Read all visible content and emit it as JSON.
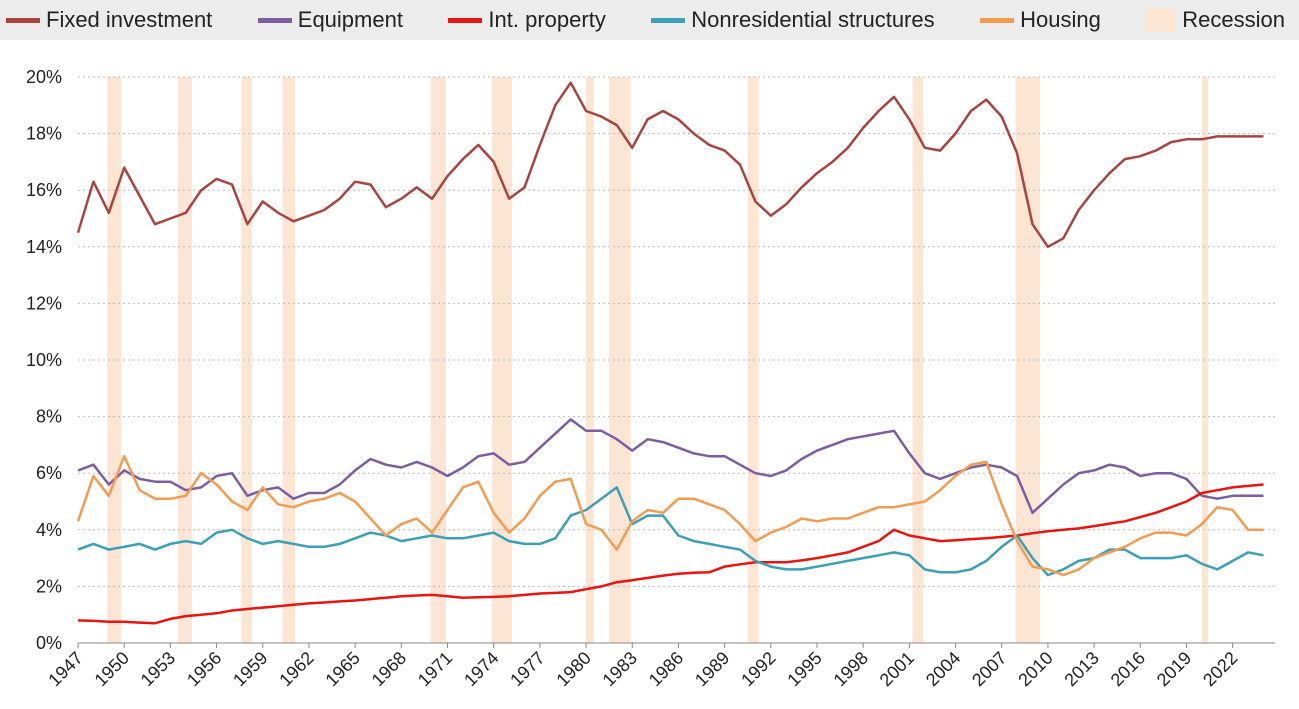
{
  "chart_data": {
    "type": "line",
    "x": [
      1947,
      1948,
      1949,
      1950,
      1951,
      1952,
      1953,
      1954,
      1955,
      1956,
      1957,
      1958,
      1959,
      1960,
      1961,
      1962,
      1963,
      1964,
      1965,
      1966,
      1967,
      1968,
      1969,
      1970,
      1971,
      1972,
      1973,
      1974,
      1975,
      1976,
      1977,
      1978,
      1979,
      1980,
      1981,
      1982,
      1983,
      1984,
      1985,
      1986,
      1987,
      1988,
      1989,
      1990,
      1991,
      1992,
      1993,
      1994,
      1995,
      1996,
      1997,
      1998,
      1999,
      2000,
      2001,
      2002,
      2003,
      2004,
      2005,
      2006,
      2007,
      2008,
      2009,
      2010,
      2011,
      2012,
      2013,
      2014,
      2015,
      2016,
      2017,
      2018,
      2019,
      2020,
      2021,
      2022,
      2023,
      2024
    ],
    "series": [
      {
        "name": "Fixed investment",
        "color": "#a84440",
        "values": [
          14.5,
          16.3,
          15.2,
          16.8,
          15.8,
          14.8,
          15.0,
          15.2,
          16.0,
          16.4,
          16.2,
          14.8,
          15.6,
          15.2,
          14.9,
          15.1,
          15.3,
          15.7,
          16.3,
          16.2,
          15.4,
          15.7,
          16.1,
          15.7,
          16.5,
          17.1,
          17.6,
          17.0,
          15.7,
          16.1,
          17.6,
          19.0,
          19.8,
          18.8,
          18.6,
          18.3,
          17.5,
          18.5,
          18.8,
          18.5,
          18.0,
          17.6,
          17.4,
          16.9,
          15.6,
          15.1,
          15.5,
          16.1,
          16.6,
          17.0,
          17.5,
          18.2,
          18.8,
          19.3,
          18.5,
          17.5,
          17.4,
          18.0,
          18.8,
          19.2,
          18.6,
          17.3,
          14.8,
          14.0,
          14.3,
          15.3,
          16.0,
          16.6,
          17.1,
          17.2,
          17.4,
          17.7,
          17.8,
          17.8,
          17.9,
          17.9,
          17.9,
          17.9
        ]
      },
      {
        "name": "Equipment",
        "color": "#7a5ea0",
        "values": [
          6.1,
          6.3,
          5.6,
          6.1,
          5.8,
          5.7,
          5.7,
          5.4,
          5.5,
          5.9,
          6.0,
          5.2,
          5.4,
          5.5,
          5.1,
          5.3,
          5.3,
          5.6,
          6.1,
          6.5,
          6.3,
          6.2,
          6.4,
          6.2,
          5.9,
          6.2,
          6.6,
          6.7,
          6.3,
          6.4,
          6.9,
          7.4,
          7.9,
          7.5,
          7.5,
          7.2,
          6.8,
          7.2,
          7.1,
          6.9,
          6.7,
          6.6,
          6.6,
          6.3,
          6.0,
          5.9,
          6.1,
          6.5,
          6.8,
          7.0,
          7.2,
          7.3,
          7.4,
          7.5,
          6.7,
          6.0,
          5.8,
          6.0,
          6.2,
          6.3,
          6.2,
          5.9,
          4.6,
          5.1,
          5.6,
          6.0,
          6.1,
          6.3,
          6.2,
          5.9,
          6.0,
          6.0,
          5.8,
          5.2,
          5.1,
          5.2,
          5.2,
          5.2
        ]
      },
      {
        "name": "Int. property",
        "color": "#e8140f",
        "values": [
          0.8,
          0.78,
          0.75,
          0.75,
          0.72,
          0.7,
          0.85,
          0.95,
          1.0,
          1.05,
          1.15,
          1.2,
          1.25,
          1.3,
          1.35,
          1.4,
          1.43,
          1.47,
          1.5,
          1.55,
          1.6,
          1.65,
          1.68,
          1.7,
          1.65,
          1.6,
          1.62,
          1.63,
          1.65,
          1.7,
          1.75,
          1.77,
          1.8,
          1.9,
          2.0,
          2.15,
          2.22,
          2.3,
          2.38,
          2.45,
          2.48,
          2.5,
          2.7,
          2.78,
          2.85,
          2.85,
          2.85,
          2.92,
          3.0,
          3.1,
          3.2,
          3.4,
          3.6,
          4.0,
          3.8,
          3.7,
          3.6,
          3.63,
          3.67,
          3.7,
          3.75,
          3.8,
          3.88,
          3.95,
          4.0,
          4.05,
          4.13,
          4.22,
          4.3,
          4.45,
          4.6,
          4.8,
          5.0,
          5.3,
          5.4,
          5.5,
          5.55,
          5.6
        ]
      },
      {
        "name": "Nonresidential structures",
        "color": "#3c9fb8",
        "values": [
          3.3,
          3.5,
          3.3,
          3.4,
          3.5,
          3.3,
          3.5,
          3.6,
          3.5,
          3.9,
          4.0,
          3.7,
          3.5,
          3.6,
          3.5,
          3.4,
          3.4,
          3.5,
          3.7,
          3.9,
          3.8,
          3.6,
          3.7,
          3.8,
          3.7,
          3.7,
          3.8,
          3.9,
          3.6,
          3.5,
          3.5,
          3.7,
          4.5,
          4.7,
          5.1,
          5.5,
          4.2,
          4.5,
          4.5,
          3.8,
          3.6,
          3.5,
          3.4,
          3.3,
          2.9,
          2.7,
          2.6,
          2.6,
          2.7,
          2.8,
          2.9,
          3.0,
          3.1,
          3.2,
          3.1,
          2.6,
          2.5,
          2.5,
          2.6,
          2.9,
          3.4,
          3.8,
          3.0,
          2.4,
          2.6,
          2.9,
          3.0,
          3.3,
          3.3,
          3.0,
          3.0,
          3.0,
          3.1,
          2.8,
          2.6,
          2.9,
          3.2,
          3.1
        ]
      },
      {
        "name": "Housing",
        "color": "#f39b50",
        "values": [
          4.3,
          5.9,
          5.2,
          6.6,
          5.4,
          5.1,
          5.1,
          5.2,
          6.0,
          5.6,
          5.0,
          4.7,
          5.5,
          4.9,
          4.8,
          5.0,
          5.1,
          5.3,
          5.0,
          4.4,
          3.8,
          4.2,
          4.4,
          3.9,
          4.7,
          5.5,
          5.7,
          4.6,
          3.9,
          4.4,
          5.2,
          5.7,
          5.8,
          4.2,
          4.0,
          3.3,
          4.3,
          4.7,
          4.6,
          5.1,
          5.1,
          4.9,
          4.7,
          4.2,
          3.6,
          3.9,
          4.1,
          4.4,
          4.3,
          4.4,
          4.4,
          4.6,
          4.8,
          4.8,
          4.9,
          5.0,
          5.4,
          5.9,
          6.3,
          6.4,
          4.9,
          3.6,
          2.7,
          2.6,
          2.4,
          2.6,
          3.0,
          3.2,
          3.4,
          3.7,
          3.9,
          3.9,
          3.8,
          4.2,
          4.8,
          4.7,
          4.0,
          4.0
        ]
      }
    ],
    "recessions": {
      "name": "Recession",
      "color": "#fde5d4",
      "periods": [
        [
          1948.9,
          1949.8
        ],
        [
          1953.5,
          1954.4
        ],
        [
          1957.6,
          1958.3
        ],
        [
          1960.3,
          1961.1
        ],
        [
          1969.9,
          1970.9
        ],
        [
          1973.9,
          1975.2
        ],
        [
          1980.0,
          1980.5
        ],
        [
          1981.5,
          1982.9
        ],
        [
          1990.5,
          1991.2
        ],
        [
          2001.2,
          2001.9
        ],
        [
          2007.9,
          2009.5
        ],
        [
          2020.0,
          2020.4
        ]
      ]
    },
    "xlim": [
      1947,
      2024.75
    ],
    "xticks": [
      1947,
      1950,
      1953,
      1956,
      1959,
      1962,
      1965,
      1968,
      1971,
      1974,
      1977,
      1980,
      1983,
      1986,
      1989,
      1992,
      1995,
      1998,
      2001,
      2004,
      2007,
      2010,
      2013,
      2016,
      2019,
      2022
    ],
    "ylim": [
      0,
      20
    ],
    "yticks": [
      {
        "value": 0,
        "label": "0%"
      },
      {
        "value": 2,
        "label": "2%"
      },
      {
        "value": 4,
        "label": "4%"
      },
      {
        "value": 6,
        "label": "6%"
      },
      {
        "value": 8,
        "label": "8%"
      },
      {
        "value": 10,
        "label": "10%"
      },
      {
        "value": 12,
        "label": "12%"
      },
      {
        "value": 14,
        "label": "14%"
      },
      {
        "value": 16,
        "label": "16%"
      },
      {
        "value": 18,
        "label": "18%"
      },
      {
        "value": 20,
        "label": "20%"
      }
    ],
    "grid": true
  }
}
